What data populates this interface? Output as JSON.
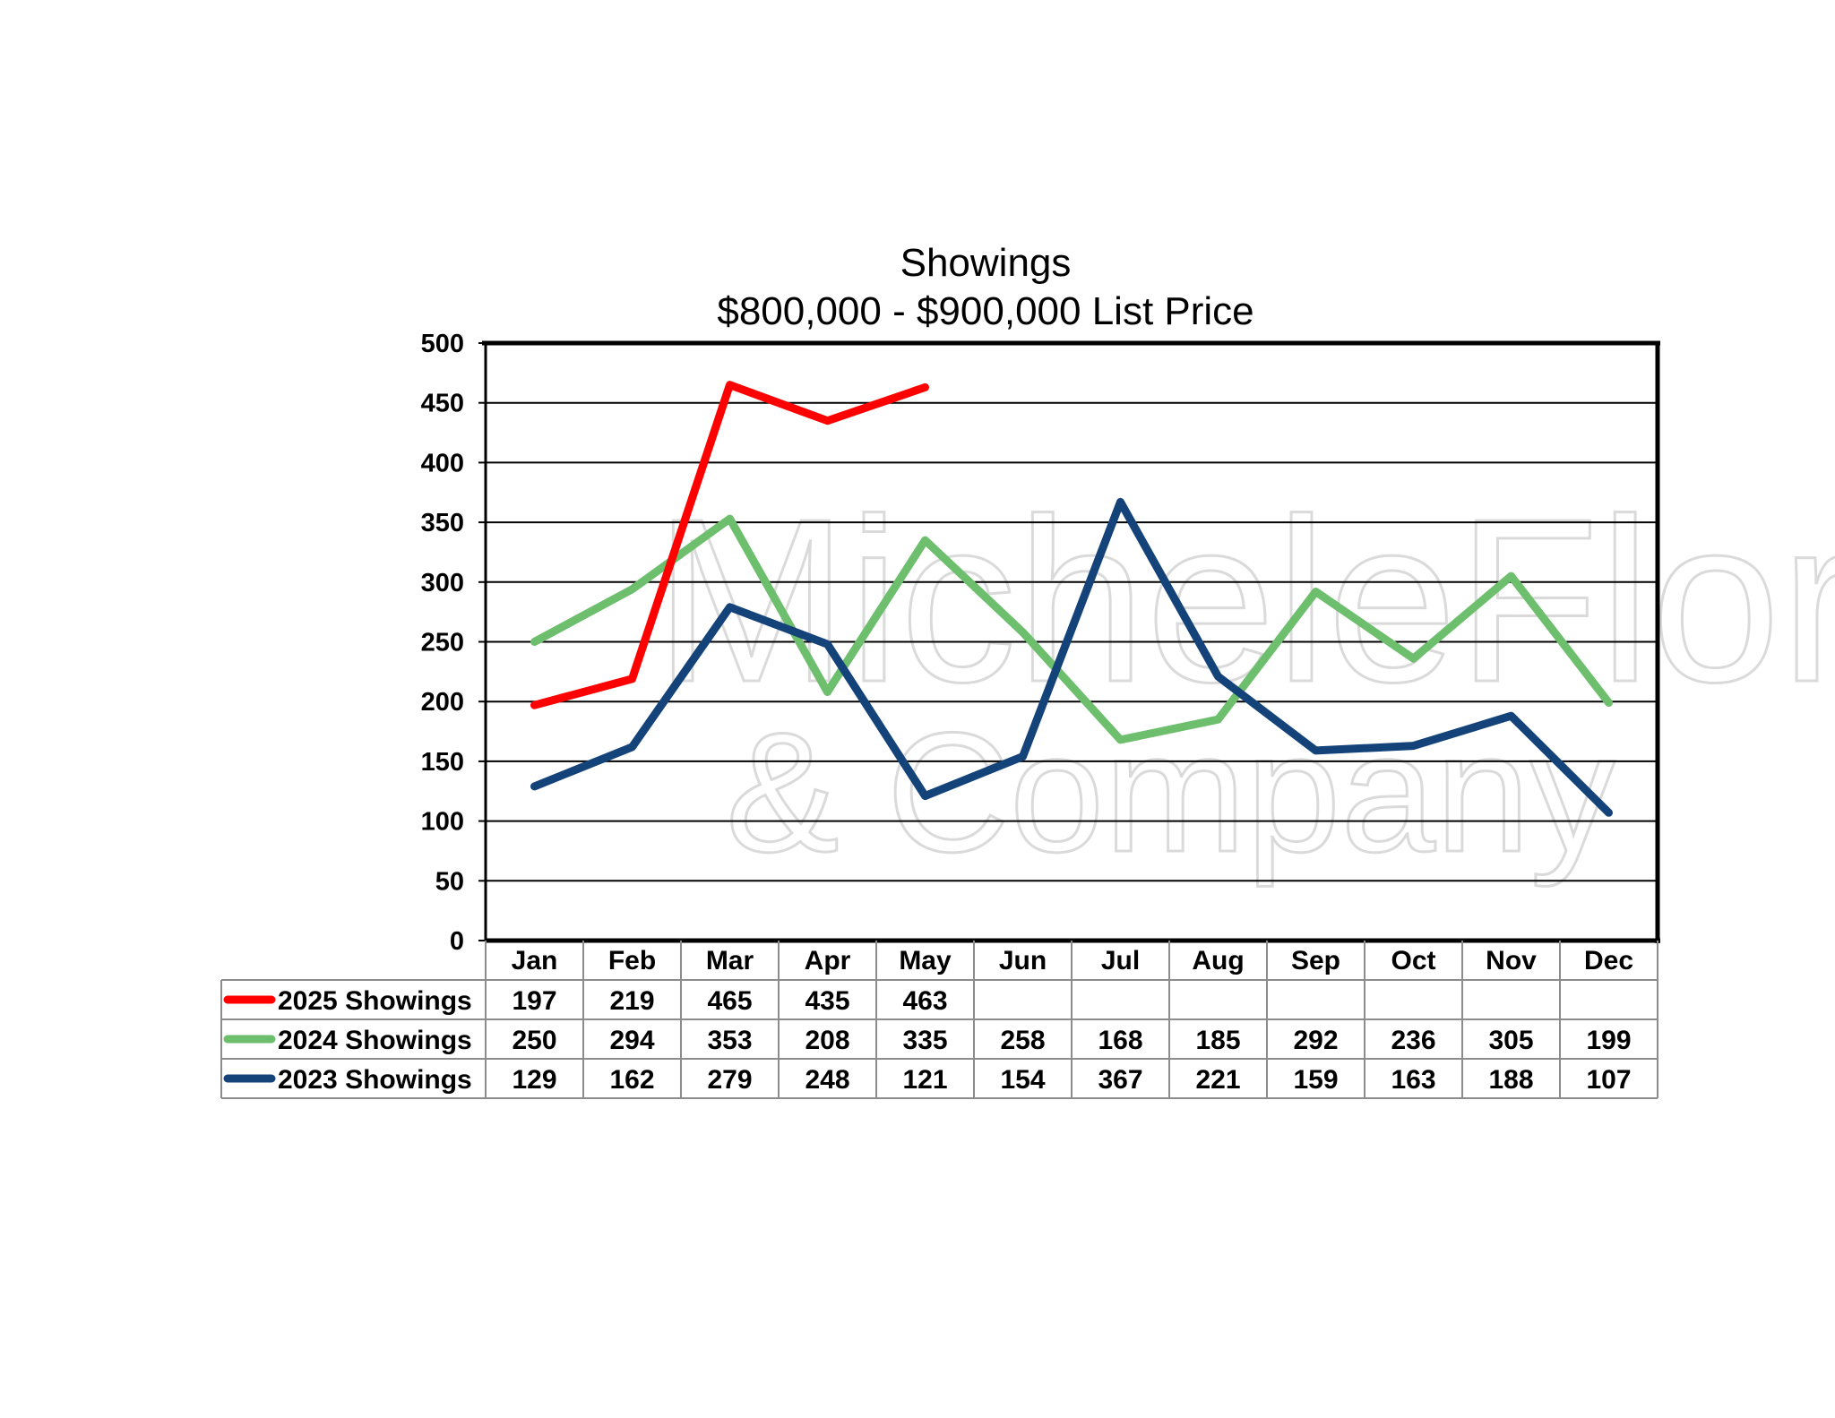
{
  "chart_data": {
    "type": "line",
    "title": "Showings",
    "subtitle": "$800,000 - $900,000 List Price",
    "categories": [
      "Jan",
      "Feb",
      "Mar",
      "Apr",
      "May",
      "Jun",
      "Jul",
      "Aug",
      "Sep",
      "Oct",
      "Nov",
      "Dec"
    ],
    "ylim": [
      0,
      500
    ],
    "yticks": [
      0,
      50,
      100,
      150,
      200,
      250,
      300,
      350,
      400,
      450,
      500
    ],
    "grid": true,
    "legend": "data-table-left",
    "series": [
      {
        "name": "2025 Showings",
        "color": "#ff0000",
        "values": [
          197,
          219,
          465,
          435,
          463,
          null,
          null,
          null,
          null,
          null,
          null,
          null
        ]
      },
      {
        "name": "2024 Showings",
        "color": "#6dbf6d",
        "values": [
          250,
          294,
          353,
          208,
          335,
          258,
          168,
          185,
          292,
          236,
          305,
          199
        ]
      },
      {
        "name": "2023 Showings",
        "color": "#14437a",
        "values": [
          129,
          162,
          279,
          248,
          121,
          154,
          367,
          221,
          159,
          163,
          188,
          107
        ]
      }
    ]
  },
  "watermark": {
    "line1": "MicheleFlory",
    "line2": "& Company"
  }
}
